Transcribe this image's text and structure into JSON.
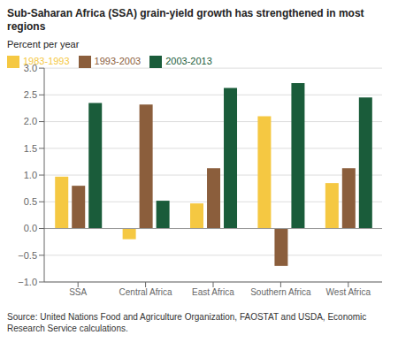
{
  "chart_data": {
    "type": "bar",
    "title": "Sub-Saharan Africa (SSA) grain-yield growth has strengthened in most regions",
    "ylabel": "Percent per year",
    "annotations": [
      "Source: United Nations Food and Agriculture Organization, FAOSTAT and USDA, Economic\nResearch Service calculations."
    ],
    "categories": [
      "SSA",
      "Central Africa",
      "East Africa",
      "Southern Africa",
      "West Africa"
    ],
    "series": [
      {
        "name": "1983-1993",
        "color": "#F5C842",
        "values": [
          0.97,
          -0.2,
          0.47,
          2.1,
          0.85
        ]
      },
      {
        "name": "1993-2003",
        "color": "#8B5E3C",
        "values": [
          0.8,
          2.32,
          1.13,
          -0.7,
          1.13
        ]
      },
      {
        "name": "2003-2013",
        "color": "#1A5C3A",
        "values": [
          2.35,
          0.52,
          2.63,
          2.72,
          2.45
        ]
      }
    ],
    "ylim": [
      -1,
      3
    ],
    "yticks": [
      {
        "value": -1,
        "label": "−1.0"
      },
      {
        "value": -0.5,
        "label": "−0.5"
      },
      {
        "value": 0,
        "label": "0.0"
      },
      0.5,
      {
        "value": 1,
        "label": "1.0"
      },
      1.5,
      {
        "value": 2,
        "label": "2.0"
      },
      2.5,
      {
        "value": 3,
        "label": "3.0"
      }
    ],
    "grid": true,
    "legend": "upper left"
  }
}
